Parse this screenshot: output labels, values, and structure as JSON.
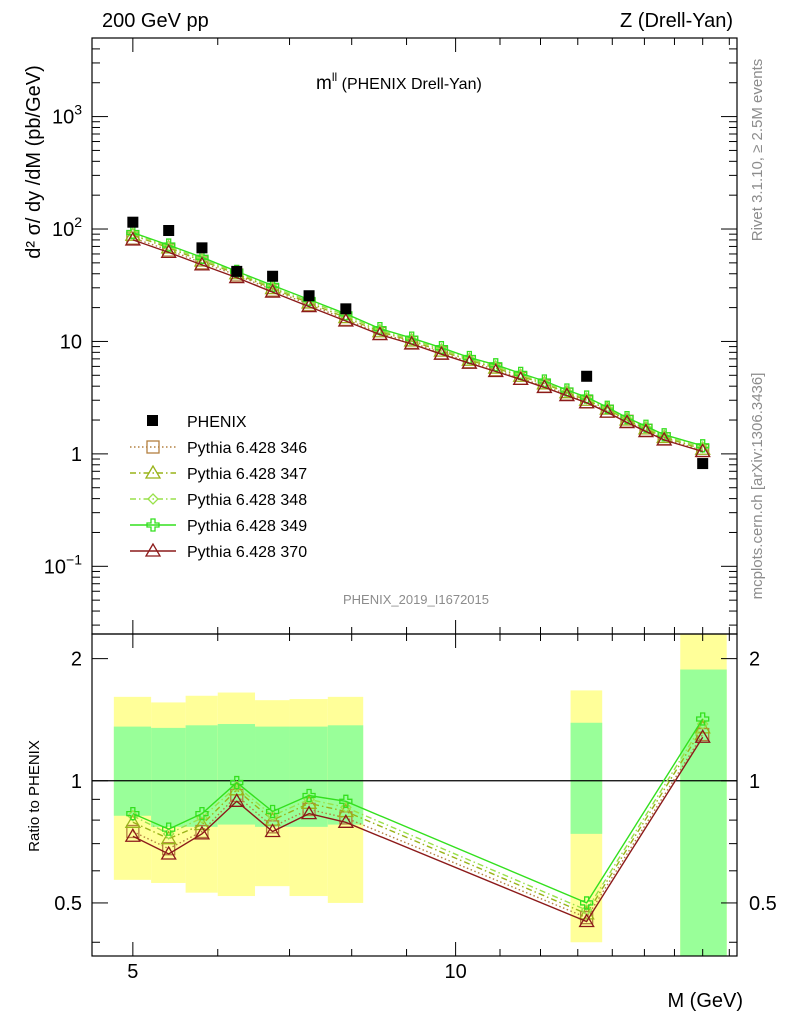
{
  "chart_data": {
    "type": "line",
    "header_left": "200 GeV pp",
    "header_right": "Z (Drell-Yan)",
    "title": "m",
    "title_sup": "ll",
    "title_suffix": " (PHENIX Drell-Yan)",
    "ylabel": "d² σ/ dy /dM (pb/GeV)",
    "ratio_ylabel": "Ratio to PHENIX",
    "xlabel": "M (GeV)",
    "analysis_id": "PHENIX_2019_I1672015",
    "side_label_top": "Rivet 3.1.10, ≥ 2.5M events",
    "side_label_bottom": "mcplots.cern.ch [arXiv:1306.3436]",
    "x_scale": "log",
    "y_scale": "log",
    "xlim": [
      4.58,
      18.3
    ],
    "ylim": [
      0.025,
      5000
    ],
    "ratio_ylim": [
      0.37,
      2.3
    ],
    "x_ticks": [
      {
        "value": 5,
        "label": "5"
      },
      {
        "value": 10,
        "label": "10"
      }
    ],
    "y_ticks": [
      {
        "value": 0.1,
        "base": "10",
        "exp": "−1"
      },
      {
        "value": 1,
        "base": "1",
        "exp": ""
      },
      {
        "value": 10,
        "base": "10",
        "exp": ""
      },
      {
        "value": 100,
        "base": "10",
        "exp": "2"
      },
      {
        "value": 1000,
        "base": "10",
        "exp": "3"
      }
    ],
    "ratio_ticks": [
      {
        "value": 0.5,
        "label": "0.5"
      },
      {
        "value": 1,
        "label": "1"
      },
      {
        "value": 2,
        "label": "2"
      }
    ],
    "legend_position": "bottom-left",
    "data": {
      "name": "PHENIX",
      "x": [
        5.0,
        5.4,
        5.8,
        6.25,
        6.75,
        7.3,
        7.9,
        13.25,
        17.0
      ],
      "y": [
        115,
        97,
        68,
        42,
        38,
        25.5,
        19.5,
        4.9,
        0.82
      ],
      "bands": [
        {
          "x0": 4.8,
          "x1": 5.2,
          "y1lo": 0.82,
          "y1hi": 1.36,
          "y2lo": 0.57,
          "y2hi": 1.61
        },
        {
          "x0": 5.2,
          "x1": 5.6,
          "y1lo": 0.77,
          "y1hi": 1.35,
          "y2lo": 0.56,
          "y2hi": 1.56
        },
        {
          "x0": 5.6,
          "x1": 6.0,
          "y1lo": 0.77,
          "y1hi": 1.37,
          "y2lo": 0.53,
          "y2hi": 1.62
        },
        {
          "x0": 6.0,
          "x1": 6.5,
          "y1lo": 0.78,
          "y1hi": 1.38,
          "y2lo": 0.52,
          "y2hi": 1.65
        },
        {
          "x0": 6.5,
          "x1": 7.0,
          "y1lo": 0.77,
          "y1hi": 1.36,
          "y2lo": 0.55,
          "y2hi": 1.58
        },
        {
          "x0": 7.0,
          "x1": 7.6,
          "y1lo": 0.77,
          "y1hi": 1.36,
          "y2lo": 0.52,
          "y2hi": 1.59
        },
        {
          "x0": 7.6,
          "x1": 8.2,
          "y1lo": 0.78,
          "y1hi": 1.37,
          "y2lo": 0.5,
          "y2hi": 1.61
        },
        {
          "x0": 12.8,
          "x1": 13.7,
          "y1lo": 0.74,
          "y1hi": 1.39,
          "y2lo": 0.4,
          "y2hi": 1.67
        },
        {
          "x0": 16.2,
          "x1": 17.9,
          "y1lo": 0.37,
          "y1hi": 1.88,
          "y2lo": 0.37,
          "y2hi": 2.3
        }
      ]
    },
    "mc_x": [
      5.0,
      5.4,
      5.8,
      6.25,
      6.75,
      7.3,
      7.9,
      8.5,
      9.1,
      9.7,
      10.3,
      10.9,
      11.5,
      12.1,
      12.7,
      13.25,
      13.85,
      14.45,
      15.05,
      15.65,
      17.0
    ],
    "ratio_x": [
      5.0,
      5.4,
      5.8,
      6.25,
      6.75,
      7.3,
      7.9,
      13.25,
      17.0
    ],
    "series": [
      {
        "name": "Pythia 6.428 346",
        "color": "#b38040",
        "dash": "1.5,2.5",
        "marker": "square",
        "y": [
          83,
          65,
          50,
          39,
          28.6,
          21.3,
          15.7,
          11.8,
          9.8,
          7.9,
          6.6,
          5.6,
          4.7,
          4.0,
          3.4,
          2.9,
          2.4,
          1.95,
          1.62,
          1.36,
          1.07
        ],
        "ratio": [
          0.75,
          0.68,
          0.75,
          0.92,
          0.77,
          0.85,
          0.81,
          0.46,
          1.3
        ]
      },
      {
        "name": "Pythia 6.428 347",
        "color": "#99b319",
        "dash": "6,3,1.5,3",
        "marker": "triangle",
        "y": [
          88,
          68,
          52,
          40,
          29.5,
          22,
          16.3,
          12.2,
          10.1,
          8.2,
          6.8,
          5.8,
          4.9,
          4.2,
          3.5,
          3.0,
          2.5,
          2.0,
          1.67,
          1.4,
          1.1
        ],
        "ratio": [
          0.79,
          0.72,
          0.78,
          0.95,
          0.8,
          0.88,
          0.84,
          0.47,
          1.35
        ]
      },
      {
        "name": "Pythia 6.428 348",
        "color": "#99e14a",
        "dash": "6,3,1.5,3",
        "marker": "diamond",
        "y": [
          91,
          70,
          54,
          41,
          30.4,
          22.8,
          17.0,
          12.6,
          10.4,
          8.5,
          7.0,
          6.0,
          5.05,
          4.3,
          3.6,
          3.1,
          2.55,
          2.05,
          1.72,
          1.44,
          1.14
        ],
        "ratio": [
          0.82,
          0.74,
          0.81,
          0.97,
          0.82,
          0.9,
          0.86,
          0.48,
          1.38
        ]
      },
      {
        "name": "Pythia 6.428 349",
        "color": "#33e01e",
        "dash": "",
        "marker": "cross",
        "y": [
          93,
          72,
          56,
          42,
          31.5,
          23.6,
          17.6,
          13.0,
          10.7,
          8.8,
          7.2,
          6.2,
          5.2,
          4.45,
          3.7,
          3.2,
          2.6,
          2.1,
          1.76,
          1.48,
          1.18
        ],
        "ratio": [
          0.83,
          0.76,
          0.83,
          0.99,
          0.84,
          0.92,
          0.89,
          0.5,
          1.42
        ]
      },
      {
        "name": "Pythia 6.428 370",
        "color": "#8c1a1a",
        "dash": "",
        "marker": "triangle",
        "y": [
          80,
          62,
          48,
          37,
          27.5,
          20.4,
          15.2,
          11.5,
          9.5,
          7.7,
          6.4,
          5.4,
          4.6,
          3.9,
          3.3,
          2.85,
          2.35,
          1.9,
          1.58,
          1.33,
          1.05
        ],
        "ratio": [
          0.73,
          0.66,
          0.74,
          0.89,
          0.75,
          0.83,
          0.79,
          0.45,
          1.28
        ]
      }
    ]
  }
}
